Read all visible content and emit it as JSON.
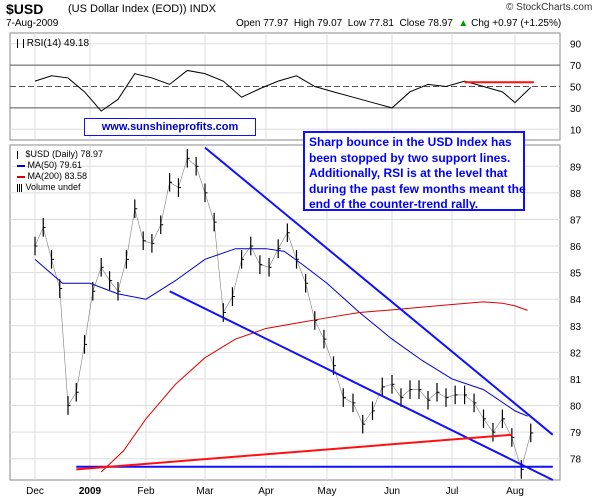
{
  "header": {
    "ticker": "$USD",
    "description": "(US Dollar Index (EOD))",
    "exchange": "INDX",
    "as_of": "7-Aug-2009",
    "open": "Open 77.97",
    "high": "High 79.07",
    "low": "Low 77.81",
    "close": "Close 78.97",
    "change": "Chg +0.97 (+1.25%)",
    "change_arrow": "▲",
    "brand": "© StockCharts.com"
  },
  "rsi_panel": {
    "label": "RSI(14) 49.18",
    "ticks": [
      "90",
      "70",
      "50",
      "30",
      "10"
    ],
    "tick_values": [
      90,
      70,
      50,
      30,
      10
    ],
    "reference_lines": [
      70,
      50,
      30
    ]
  },
  "legend": {
    "symbol": "$USD (Daily) 78.97",
    "ma50": "MA(50) 79.61",
    "ma200": "MA(200) 83.58",
    "volume": "Volume undef"
  },
  "site_label": "www.sunshineprofits.com",
  "annotation_lines": [
    "Sharp bounce in the USD Index has",
    "been stopped by two support lines.",
    "Additionally, RSI is at the level that",
    "during the past few months meant the",
    "end of the counter-trend rally."
  ],
  "colors": {
    "price_bars": "#000000",
    "ma50": "#0000cc",
    "ma200": "#dd0000",
    "trendline_blue": "#1010ff",
    "trendline_red": "#ff1010",
    "grid": "#dddddd",
    "text_blue": "#0000ff"
  },
  "chart_data": {
    "type": "line",
    "x_ticks": [
      "Dec",
      "2009",
      "Feb",
      "Mar",
      "Apr",
      "May",
      "Jun",
      "Jul",
      "Aug"
    ],
    "x_tick_month_index": [
      0,
      1,
      2,
      3,
      4,
      5,
      6,
      7,
      8
    ],
    "y_ticks": [
      78,
      79,
      80,
      81,
      82,
      83,
      84,
      85,
      86,
      87,
      88,
      89
    ],
    "ylim": [
      77.2,
      89.8
    ],
    "series": [
      {
        "name": "$USD (Daily) 78.97",
        "x": [
          0,
          0.15,
          0.3,
          0.45,
          0.6,
          0.75,
          0.9,
          1.05,
          1.2,
          1.35,
          1.5,
          1.65,
          1.8,
          1.95,
          2.1,
          2.25,
          2.4,
          2.55,
          2.7,
          2.85,
          3.0,
          3.15,
          3.3,
          3.45,
          3.6,
          3.75,
          3.9,
          4.05,
          4.2,
          4.35,
          4.5,
          4.65,
          4.8,
          4.95,
          5.1,
          5.25,
          5.4,
          5.55,
          5.7,
          5.85,
          6.0,
          6.15,
          6.3,
          6.45,
          6.6,
          6.75,
          6.9,
          7.05,
          7.2,
          7.35,
          7.5,
          7.65,
          7.8,
          7.95,
          8.1,
          8.25
        ],
        "values": [
          86.0,
          86.7,
          85.5,
          84.4,
          80.0,
          80.5,
          82.3,
          84.3,
          85.2,
          84.7,
          84.3,
          85.5,
          87.4,
          86.2,
          86.1,
          86.8,
          88.4,
          88.2,
          89.3,
          89.0,
          88.0,
          86.9,
          83.5,
          84.1,
          85.5,
          86.0,
          85.3,
          85.2,
          85.9,
          86.5,
          85.5,
          84.6,
          83.2,
          82.5,
          81.5,
          80.3,
          80.1,
          79.3,
          79.8,
          80.7,
          80.8,
          80.3,
          80.6,
          80.6,
          80.2,
          80.5,
          80.3,
          80.4,
          80.4,
          80.1,
          79.5,
          79.0,
          79.5,
          78.8,
          77.6,
          78.97
        ]
      },
      {
        "name": "MA(50) 79.61",
        "x": [
          0,
          0.5,
          1.0,
          1.5,
          2.0,
          2.5,
          3.0,
          3.5,
          4.0,
          4.3,
          4.6,
          5.0,
          5.5,
          6.0,
          6.5,
          7.0,
          7.5,
          8.0,
          8.2
        ],
        "values": [
          85.5,
          84.6,
          84.6,
          84.2,
          84.0,
          84.7,
          85.5,
          85.9,
          85.9,
          85.8,
          85.3,
          84.6,
          83.5,
          82.5,
          81.7,
          81.0,
          80.6,
          79.8,
          79.6
        ]
      },
      {
        "name": "MA(200) 83.58",
        "x": [
          1.2,
          1.6,
          2.0,
          2.5,
          3.0,
          3.5,
          4.0,
          4.5,
          5.0,
          5.5,
          6.0,
          6.5,
          7.0,
          7.5,
          7.8,
          8.0,
          8.2
        ],
        "values": [
          77.5,
          78.3,
          79.5,
          80.8,
          81.8,
          82.5,
          82.9,
          83.1,
          83.3,
          83.5,
          83.6,
          83.7,
          83.8,
          83.9,
          83.85,
          83.75,
          83.58
        ]
      },
      {
        "name": "RSI(14) 49.18",
        "panel": "rsi",
        "x": [
          0,
          0.3,
          0.6,
          0.9,
          1.2,
          1.5,
          1.8,
          2.1,
          2.4,
          2.7,
          3.0,
          3.3,
          3.6,
          3.9,
          4.2,
          4.5,
          4.8,
          5.1,
          5.4,
          5.7,
          6.0,
          6.3,
          6.6,
          6.9,
          7.2,
          7.5,
          7.8,
          8.0,
          8.25
        ],
        "values": [
          55,
          60,
          58,
          45,
          27,
          38,
          62,
          58,
          52,
          65,
          62,
          55,
          40,
          48,
          55,
          60,
          50,
          45,
          40,
          35,
          30,
          45,
          52,
          50,
          55,
          50,
          45,
          35,
          49.18
        ]
      }
    ],
    "trendlines": [
      {
        "color": "blue",
        "from": [
          3.0,
          89.7
        ],
        "to": [
          8.6,
          78.9
        ]
      },
      {
        "color": "blue",
        "from": [
          2.4,
          84.3
        ],
        "to": [
          8.6,
          77.2
        ]
      },
      {
        "color": "blue",
        "from": [
          0.75,
          77.7
        ],
        "to": [
          8.6,
          77.7
        ]
      },
      {
        "color": "red",
        "from": [
          0.75,
          77.6
        ],
        "to": [
          7.95,
          78.9
        ]
      },
      {
        "color": "red",
        "from": [
          7.2,
          54
        ],
        "to": [
          8.3,
          54
        ],
        "panel": "rsi"
      }
    ]
  }
}
